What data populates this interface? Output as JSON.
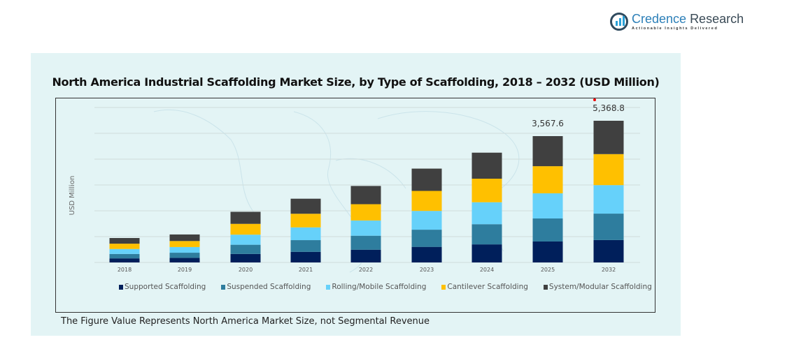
{
  "brand": {
    "name_part1": "Credence",
    "name_part2": "Research",
    "tagline": "Actionable Insights Delivered"
  },
  "footnote": "The Figure Value Represents North America Market Size, not Segmental Revenue",
  "chart_data": {
    "type": "bar",
    "stacked": true,
    "title": "North America Industrial Scaffolding Market Size, by Type of Scaffolding, 2018 – 2032 (USD Million)",
    "xlabel": "",
    "ylabel": "USD Million",
    "categories": [
      "2018",
      "2019",
      "2020",
      "2021",
      "2022",
      "2023",
      "2024",
      "2025",
      "2032"
    ],
    "totals": [
      690,
      790,
      1430,
      1800,
      2160,
      2650,
      3100,
      3567.6,
      5368.8
    ],
    "total_labels": [
      "",
      "",
      "",
      "",
      "",
      "",
      "",
      "3,567.6",
      "5,368.8"
    ],
    "series": [
      {
        "name": "Supported Scaffolding",
        "color": "#001f5b",
        "values": [
          115,
          130,
          240,
          300,
          360,
          440,
          510,
          592,
          850
        ]
      },
      {
        "name": "Suspended Scaffolding",
        "color": "#2e7d9e",
        "values": [
          125,
          145,
          260,
          330,
          395,
          485,
          570,
          650,
          1000
        ]
      },
      {
        "name": "Rolling/Mobile Scaffolding",
        "color": "#66d1fa",
        "values": [
          140,
          160,
          285,
          360,
          430,
          530,
          620,
          710,
          1080
        ]
      },
      {
        "name": "Cantilever Scaffolding",
        "color": "#ffc000",
        "values": [
          150,
          170,
          305,
          385,
          460,
          565,
          665,
          766,
          1175
        ]
      },
      {
        "name": "System/Modular Scaffolding",
        "color": "#404040",
        "values": [
          160,
          185,
          340,
          425,
          515,
          630,
          735,
          849.6,
          1263.8
        ]
      }
    ],
    "ylim": [
      0,
      6000
    ],
    "gridlines": true,
    "axis_break_on_last_category": true,
    "legend_position": "bottom"
  }
}
